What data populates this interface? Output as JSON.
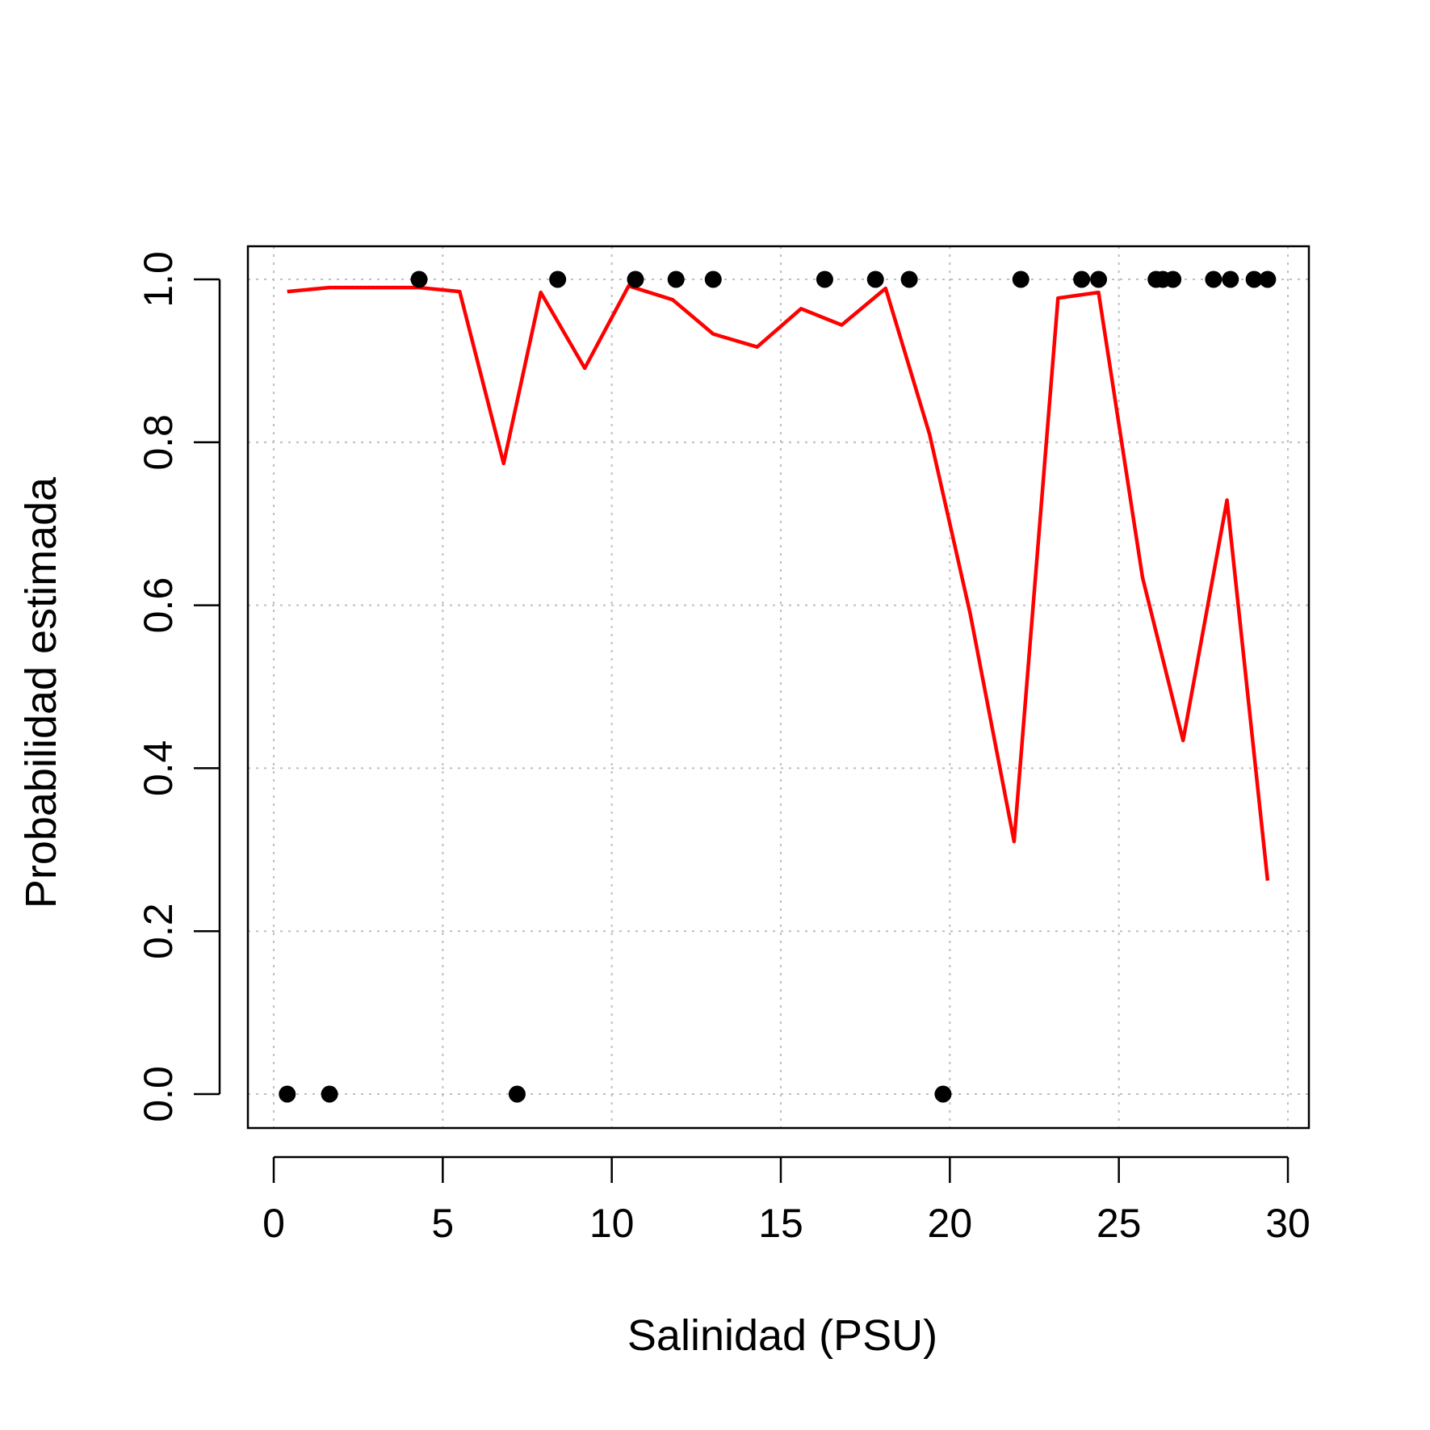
{
  "chart_data": {
    "type": "scatter",
    "title": "",
    "xlabel": "Salinidad (PSU)",
    "ylabel": "Probabilidad estimada",
    "xlim": [
      0,
      30
    ],
    "ylim": [
      0,
      1
    ],
    "grid": true,
    "legend": "none",
    "x_ticks": [
      "0",
      "5",
      "10",
      "15",
      "20",
      "25",
      "30"
    ],
    "y_ticks": [
      "0.0",
      "0.2",
      "0.4",
      "0.6",
      "0.8",
      "1.0"
    ],
    "colors": {
      "points": "#000000",
      "line": "#ff0000",
      "grid": "#bebebe",
      "axes": "#000000"
    },
    "series": [
      {
        "type": "scatter",
        "points": [
          [
            0.4,
            0
          ],
          [
            1.65,
            0
          ],
          [
            4.3,
            1
          ],
          [
            7.2,
            0
          ],
          [
            8.4,
            1
          ],
          [
            10.7,
            1
          ],
          [
            11.9,
            1
          ],
          [
            13.0,
            1
          ],
          [
            16.3,
            1
          ],
          [
            17.8,
            1
          ],
          [
            18.8,
            1
          ],
          [
            19.8,
            0
          ],
          [
            22.1,
            1
          ],
          [
            23.9,
            1
          ],
          [
            24.4,
            1
          ],
          [
            26.1,
            1
          ],
          [
            26.3,
            1
          ],
          [
            26.6,
            1
          ],
          [
            27.8,
            1
          ],
          [
            28.3,
            1
          ],
          [
            29.0,
            1
          ],
          [
            29.4,
            1
          ]
        ]
      },
      {
        "type": "line",
        "points": [
          [
            0.4,
            0.985
          ],
          [
            1.65,
            0.99
          ],
          [
            4.3,
            0.99
          ],
          [
            5.5,
            0.985
          ],
          [
            6.8,
            0.774
          ],
          [
            7.9,
            0.984
          ],
          [
            9.2,
            0.891
          ],
          [
            10.5,
            0.992
          ],
          [
            11.8,
            0.975
          ],
          [
            13.0,
            0.933
          ],
          [
            14.3,
            0.917
          ],
          [
            15.6,
            0.964
          ],
          [
            16.8,
            0.944
          ],
          [
            18.1,
            0.989
          ],
          [
            19.4,
            0.81
          ],
          [
            20.6,
            0.59
          ],
          [
            21.9,
            0.31
          ],
          [
            23.2,
            0.977
          ],
          [
            24.4,
            0.984
          ],
          [
            25.7,
            0.634
          ],
          [
            26.9,
            0.434
          ],
          [
            28.2,
            0.729
          ],
          [
            29.4,
            0.262
          ]
        ]
      }
    ]
  }
}
